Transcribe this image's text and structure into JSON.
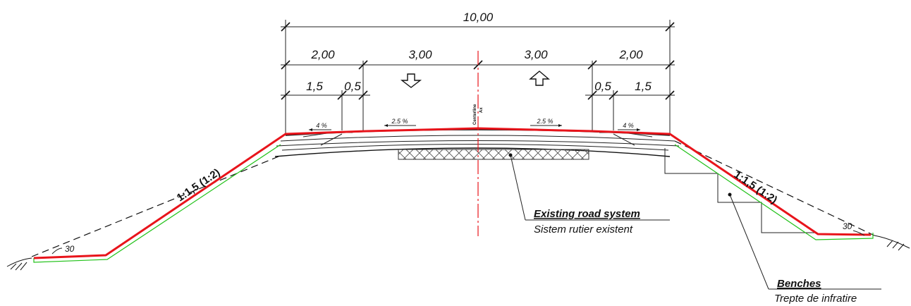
{
  "dimensions": {
    "total": "10,00",
    "left_lane": "3,00",
    "right_lane": "3,00",
    "left_shoulder": "2,00",
    "right_shoulder": "2,00",
    "left_part_a": "1,5",
    "left_part_b": "0,5",
    "right_part_a": "0,5",
    "right_part_b": "1,5"
  },
  "slopes": {
    "left_shoulder": "4 %",
    "left_lane": "2.5 %",
    "right_lane": "2.5 %",
    "right_shoulder": "4 %"
  },
  "embankment": {
    "left_ratio": "1:1,5 (1:2)",
    "right_ratio": "1:1,5 (1:2)",
    "left_angle": "30",
    "right_angle": "30"
  },
  "centerline": {
    "label": "Centerline",
    "sublabel": "Ax"
  },
  "callouts": {
    "existing_en": "Existing road system",
    "existing_ro": "Sistem rutier existent",
    "benches_en": "Benches",
    "benches_ro": "Trepte de infratire"
  },
  "colors": {
    "finished_surface": "#e8141b",
    "original_slope": "#22c21a",
    "centerline": "#e8141b",
    "linework": "#111111"
  }
}
